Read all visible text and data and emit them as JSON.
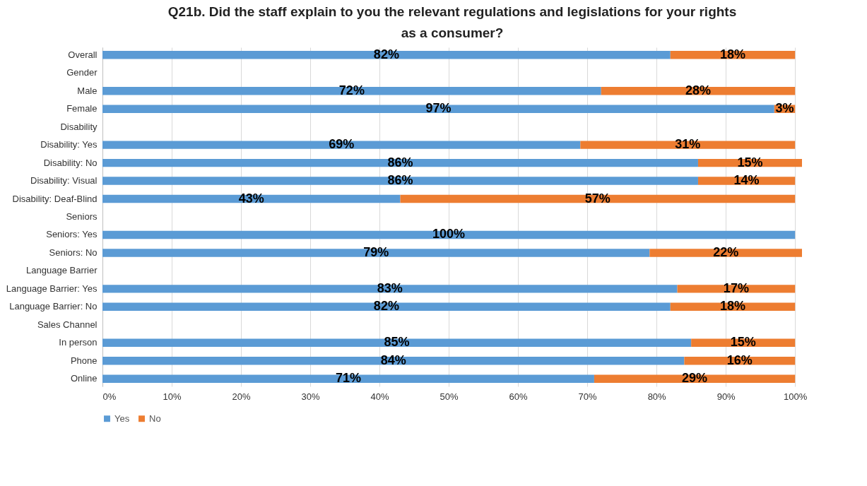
{
  "chart_data": {
    "type": "bar",
    "orientation": "horizontal",
    "stacked": true,
    "title": "Q21b. Did the staff explain to you the relevant regulations and legislations for your rights as a consumer?",
    "categories": [
      "Overall",
      "Gender",
      "Male",
      "Female",
      "Disability",
      "Disability: Yes",
      "Disability: No",
      "Disability: Visual",
      "Disability: Deaf-Blind",
      "Seniors",
      "Seniors: Yes",
      "Seniors: No",
      "Language Barrier",
      "Language Barrier: Yes",
      "Language Barrier: No",
      "Sales Channel",
      "In person",
      "Phone",
      "Online"
    ],
    "series": [
      {
        "name": "Yes",
        "color": "#5b9bd5",
        "values": [
          82,
          null,
          72,
          97,
          null,
          69,
          86,
          86,
          43,
          null,
          100,
          79,
          null,
          83,
          82,
          null,
          85,
          84,
          71
        ],
        "value_labels": [
          "82%",
          null,
          "72%",
          "97%",
          null,
          "69%",
          "86%",
          "86%",
          "43%",
          null,
          "100%",
          "79%",
          null,
          "83%",
          "82%",
          null,
          "85%",
          "84%",
          "71%"
        ]
      },
      {
        "name": "No",
        "color": "#ed7d31",
        "values": [
          18,
          null,
          28,
          3,
          null,
          31,
          15,
          14,
          57,
          null,
          null,
          22,
          null,
          17,
          18,
          null,
          15,
          16,
          29
        ],
        "value_labels": [
          "18%",
          null,
          "28%",
          "3%",
          null,
          "31%",
          "15%",
          "14%",
          "57%",
          null,
          null,
          "22%",
          null,
          "17%",
          "18%",
          null,
          "15%",
          "16%",
          "29%"
        ]
      }
    ],
    "xlim": [
      0,
      101
    ],
    "xticks": [
      {
        "value": 0,
        "label": "0%"
      },
      {
        "value": 10,
        "label": "10%"
      },
      {
        "value": 20,
        "label": "20%"
      },
      {
        "value": 30,
        "label": "30%"
      },
      {
        "value": 40,
        "label": "40%"
      },
      {
        "value": 50,
        "label": "50%"
      },
      {
        "value": 60,
        "label": "60%"
      },
      {
        "value": 70,
        "label": "70%"
      },
      {
        "value": 80,
        "label": "80%"
      },
      {
        "value": 90,
        "label": "90%"
      },
      {
        "value": 100,
        "label": "100%"
      }
    ],
    "grid": "x",
    "legend": "bottom"
  }
}
